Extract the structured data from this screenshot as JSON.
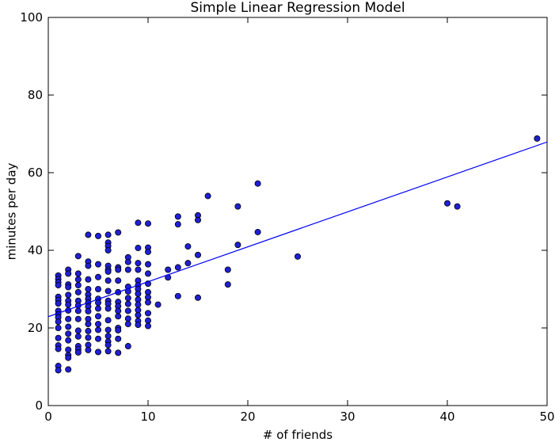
{
  "chart_data": {
    "type": "scatter",
    "title": "Simple Linear Regression Model",
    "xlabel": "# of friends",
    "ylabel": "minutes per day",
    "xlim": [
      0,
      50
    ],
    "ylim": [
      0,
      100
    ],
    "xticks": [
      0,
      10,
      20,
      30,
      40,
      50
    ],
    "yticks": [
      0,
      20,
      40,
      60,
      80,
      100
    ],
    "grid": false,
    "colors": {
      "points": "#1f1fd6",
      "point_edge": "#000000",
      "line": "#0000ff",
      "axes": "#000000"
    },
    "points": [
      [
        49,
        68.8
      ],
      [
        41,
        51.3
      ],
      [
        40,
        52.1
      ],
      [
        25,
        38.4
      ],
      [
        21,
        57.2
      ],
      [
        21,
        44.7
      ],
      [
        19,
        51.3
      ],
      [
        19,
        41.4
      ],
      [
        18,
        35.0
      ],
      [
        18,
        31.2
      ],
      [
        16,
        54.0
      ],
      [
        15,
        49.0
      ],
      [
        15,
        47.8
      ],
      [
        15,
        38.8
      ],
      [
        15,
        27.8
      ],
      [
        14,
        41.0
      ],
      [
        14,
        36.7
      ],
      [
        13,
        48.7
      ],
      [
        13,
        46.7
      ],
      [
        13,
        35.6
      ],
      [
        13,
        28.2
      ],
      [
        12,
        35.0
      ],
      [
        12,
        33.0
      ],
      [
        11,
        26.0
      ],
      [
        10,
        46.9
      ],
      [
        10,
        40.7
      ],
      [
        10,
        39.6
      ],
      [
        10,
        36.4
      ],
      [
        10,
        34.0
      ],
      [
        10,
        31.4
      ],
      [
        10,
        29.2
      ],
      [
        10,
        27.9
      ],
      [
        10,
        26.6
      ],
      [
        10,
        23.8
      ],
      [
        10,
        21.9
      ],
      [
        10,
        20.5
      ],
      [
        9,
        47.1
      ],
      [
        9,
        40.6
      ],
      [
        9,
        36.7
      ],
      [
        9,
        35.0
      ],
      [
        9,
        32.2
      ],
      [
        9,
        31.0
      ],
      [
        9,
        30.0
      ],
      [
        9,
        28.8
      ],
      [
        9,
        27.3
      ],
      [
        9,
        26.0
      ],
      [
        9,
        24.6
      ],
      [
        9,
        23.3
      ],
      [
        9,
        21.8
      ],
      [
        9,
        20.8
      ],
      [
        8,
        38.2
      ],
      [
        8,
        37.0
      ],
      [
        8,
        35.0
      ],
      [
        8,
        30.6
      ],
      [
        8,
        29.4
      ],
      [
        8,
        27.7
      ],
      [
        8,
        26.2
      ],
      [
        8,
        24.4
      ],
      [
        8,
        22.4
      ],
      [
        8,
        21.0
      ],
      [
        8,
        15.3
      ],
      [
        7,
        44.6
      ],
      [
        7,
        35.6
      ],
      [
        7,
        35.0
      ],
      [
        7,
        32.2
      ],
      [
        7,
        29.2
      ],
      [
        7,
        26.7
      ],
      [
        7,
        25.6
      ],
      [
        7,
        24.4
      ],
      [
        7,
        23.0
      ],
      [
        7,
        20.0
      ],
      [
        7,
        19.4
      ],
      [
        7,
        17.2
      ],
      [
        7,
        13.6
      ],
      [
        6,
        44.0
      ],
      [
        6,
        42.0
      ],
      [
        6,
        41.1
      ],
      [
        6,
        40.0
      ],
      [
        6,
        36.0
      ],
      [
        6,
        35.0
      ],
      [
        6,
        34.5
      ],
      [
        6,
        32.2
      ],
      [
        6,
        29.5
      ],
      [
        6,
        27.0
      ],
      [
        6,
        26.2
      ],
      [
        6,
        25.0
      ],
      [
        6,
        22.0
      ],
      [
        6,
        19.5
      ],
      [
        6,
        17.9
      ],
      [
        6,
        16.5
      ],
      [
        6,
        15.6
      ],
      [
        6,
        14.0
      ],
      [
        5,
        43.7
      ],
      [
        5,
        36.4
      ],
      [
        5,
        33.1
      ],
      [
        5,
        30.0
      ],
      [
        5,
        27.5
      ],
      [
        5,
        26.5
      ],
      [
        5,
        25.0
      ],
      [
        5,
        23.0
      ],
      [
        5,
        21.0
      ],
      [
        5,
        19.5
      ],
      [
        5,
        17.2
      ],
      [
        5,
        13.8
      ],
      [
        4,
        44.0
      ],
      [
        4,
        37.1
      ],
      [
        4,
        36.0
      ],
      [
        4,
        32.5
      ],
      [
        4,
        30.0
      ],
      [
        4,
        28.6
      ],
      [
        4,
        27.5
      ],
      [
        4,
        26.5
      ],
      [
        4,
        25.5
      ],
      [
        4,
        24.3
      ],
      [
        4,
        22.3
      ],
      [
        4,
        21.0
      ],
      [
        4,
        19.2
      ],
      [
        4,
        17.5
      ],
      [
        4,
        15.6
      ],
      [
        4,
        14.3
      ],
      [
        3,
        38.5
      ],
      [
        3,
        34.0
      ],
      [
        3,
        32.5
      ],
      [
        3,
        31.0
      ],
      [
        3,
        29.2
      ],
      [
        3,
        27.0
      ],
      [
        3,
        25.8
      ],
      [
        3,
        24.4
      ],
      [
        3,
        22.3
      ],
      [
        3,
        19.3
      ],
      [
        3,
        17.8
      ],
      [
        3,
        15.3
      ],
      [
        3,
        14.5
      ],
      [
        3,
        13.7
      ],
      [
        2,
        35.0
      ],
      [
        2,
        34.0
      ],
      [
        2,
        31.2
      ],
      [
        2,
        30.5
      ],
      [
        2,
        28.5
      ],
      [
        2,
        27.0
      ],
      [
        2,
        26.0
      ],
      [
        2,
        24.5
      ],
      [
        2,
        22.3
      ],
      [
        2,
        20.3
      ],
      [
        2,
        18.5
      ],
      [
        2,
        16.8
      ],
      [
        2,
        14.4
      ],
      [
        2,
        13.0
      ],
      [
        2,
        12.3
      ],
      [
        2,
        9.3
      ],
      [
        1,
        33.5
      ],
      [
        1,
        32.6
      ],
      [
        1,
        31.8
      ],
      [
        1,
        31.0
      ],
      [
        1,
        28.0
      ],
      [
        1,
        27.2
      ],
      [
        1,
        26.3
      ],
      [
        1,
        24.4
      ],
      [
        1,
        23.5
      ],
      [
        1,
        22.7
      ],
      [
        1,
        21.6
      ],
      [
        1,
        20.0
      ],
      [
        1,
        17.4
      ],
      [
        1,
        15.5
      ],
      [
        1,
        14.6
      ],
      [
        1,
        10.2
      ],
      [
        1,
        9.1
      ]
    ],
    "regression_line": {
      "intercept": 22.9,
      "slope": 0.9
    }
  }
}
